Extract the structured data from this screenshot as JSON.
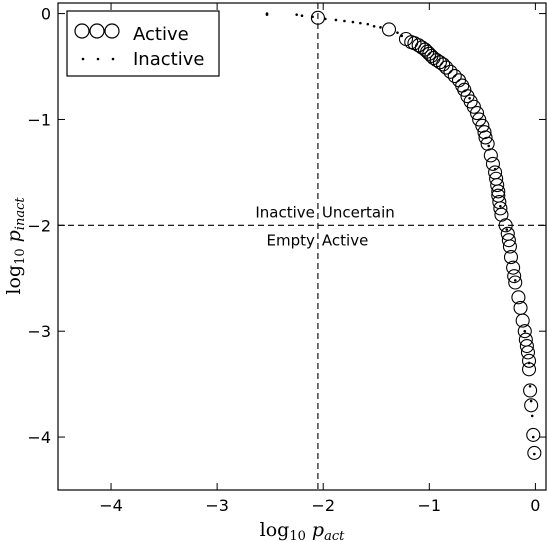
{
  "chart_data": {
    "type": "scatter",
    "xlabel": "log10 p_act",
    "ylabel": "log10 p_inact",
    "xlim": [
      -4.5,
      0.1
    ],
    "ylim": [
      -4.5,
      0.1
    ],
    "x_ticks": [
      -4,
      -3,
      -2,
      -1,
      0
    ],
    "y_ticks": [
      0,
      -1,
      -2,
      -3,
      -4
    ],
    "x_tick_labels": [
      "−4",
      "−3",
      "−2",
      "−1",
      "0"
    ],
    "y_tick_labels": [
      "0",
      "−1",
      "−2",
      "−3",
      "−4"
    ],
    "grid": false,
    "legend_position": "top-left",
    "thresholds": {
      "x": -2.05,
      "y": -2.0
    },
    "region_labels": {
      "top_left": "Inactive",
      "top_right": "Uncertain",
      "bottom_left": "Empty",
      "bottom_right": "Active"
    },
    "series": [
      {
        "name": "Active",
        "marker": "open-circle",
        "points": [
          [
            -2.05,
            -0.04
          ],
          [
            -1.38,
            -0.15
          ],
          [
            -1.22,
            -0.24
          ],
          [
            -1.17,
            -0.27
          ],
          [
            -1.14,
            -0.28
          ],
          [
            -1.1,
            -0.3
          ],
          [
            -1.07,
            -0.32
          ],
          [
            -1.04,
            -0.34
          ],
          [
            -1.02,
            -0.36
          ],
          [
            -1.0,
            -0.38
          ],
          [
            -0.98,
            -0.4
          ],
          [
            -0.96,
            -0.42
          ],
          [
            -0.93,
            -0.44
          ],
          [
            -0.9,
            -0.46
          ],
          [
            -0.87,
            -0.48
          ],
          [
            -0.84,
            -0.51
          ],
          [
            -0.8,
            -0.55
          ],
          [
            -0.76,
            -0.59
          ],
          [
            -0.72,
            -0.63
          ],
          [
            -0.69,
            -0.68
          ],
          [
            -0.67,
            -0.72
          ],
          [
            -0.64,
            -0.78
          ],
          [
            -0.61,
            -0.83
          ],
          [
            -0.58,
            -0.88
          ],
          [
            -0.55,
            -0.94
          ],
          [
            -0.53,
            -1.0
          ],
          [
            -0.5,
            -1.06
          ],
          [
            -0.48,
            -1.12
          ],
          [
            -0.47,
            -1.17
          ],
          [
            -0.45,
            -1.23
          ],
          [
            -0.42,
            -1.34
          ],
          [
            -0.4,
            -1.42
          ],
          [
            -0.38,
            -1.5
          ],
          [
            -0.37,
            -1.56
          ],
          [
            -0.36,
            -1.62
          ],
          [
            -0.35,
            -1.68
          ],
          [
            -0.35,
            -1.72
          ],
          [
            -0.34,
            -1.78
          ],
          [
            -0.33,
            -1.84
          ],
          [
            -0.32,
            -1.9
          ],
          [
            -0.28,
            -2.0
          ],
          [
            -0.26,
            -2.08
          ],
          [
            -0.25,
            -2.14
          ],
          [
            -0.24,
            -2.2
          ],
          [
            -0.23,
            -2.3
          ],
          [
            -0.21,
            -2.4
          ],
          [
            -0.2,
            -2.48
          ],
          [
            -0.19,
            -2.54
          ],
          [
            -0.16,
            -2.68
          ],
          [
            -0.14,
            -2.78
          ],
          [
            -0.12,
            -2.9
          ],
          [
            -0.1,
            -3.0
          ],
          [
            -0.09,
            -3.08
          ],
          [
            -0.08,
            -3.14
          ],
          [
            -0.07,
            -3.2
          ],
          [
            -0.06,
            -3.28
          ],
          [
            -0.06,
            -3.36
          ],
          [
            -0.05,
            -3.56
          ],
          [
            -0.04,
            -3.7
          ],
          [
            -0.02,
            -3.98
          ],
          [
            -0.01,
            -4.15
          ]
        ]
      },
      {
        "name": "Inactive",
        "marker": "dot",
        "points": [
          [
            -2.53,
            0.0
          ],
          [
            -2.53,
            -0.01
          ],
          [
            -2.25,
            -0.01
          ],
          [
            -2.2,
            -0.02
          ],
          [
            -2.1,
            -0.03
          ],
          [
            -1.98,
            -0.05
          ],
          [
            -1.88,
            -0.06
          ],
          [
            -1.8,
            -0.07
          ],
          [
            -1.72,
            -0.08
          ],
          [
            -1.65,
            -0.09
          ],
          [
            -1.58,
            -0.1
          ],
          [
            -1.52,
            -0.12
          ],
          [
            -1.46,
            -0.13
          ],
          [
            -1.3,
            -0.18
          ],
          [
            -1.26,
            -0.21
          ],
          [
            -0.85,
            -0.5
          ],
          [
            -0.62,
            -0.8
          ],
          [
            -0.44,
            -1.25
          ],
          [
            -0.38,
            -1.47
          ],
          [
            -0.33,
            -1.82
          ],
          [
            -0.27,
            -2.04
          ],
          [
            -0.19,
            -2.52
          ],
          [
            -0.1,
            -3.0
          ],
          [
            -0.06,
            -3.3
          ],
          [
            -0.05,
            -3.52
          ],
          [
            -0.04,
            -3.66
          ],
          [
            -0.03,
            -3.8
          ],
          [
            -0.02,
            -4.0
          ],
          [
            -0.01,
            -4.16
          ]
        ]
      }
    ]
  }
}
